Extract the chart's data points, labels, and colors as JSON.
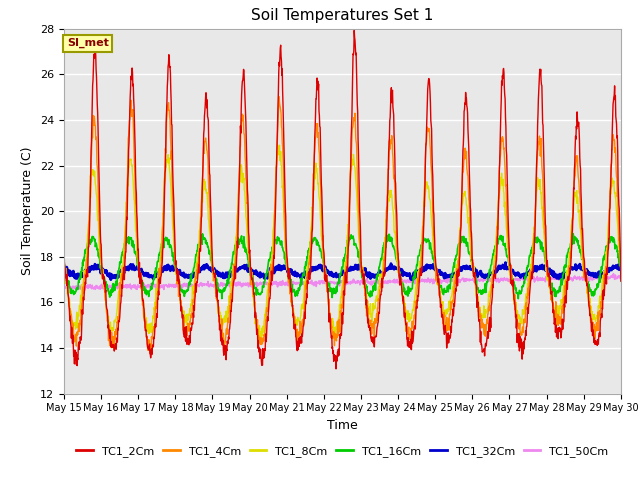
{
  "title": "Soil Temperatures Set 1",
  "xlabel": "Time",
  "ylabel": "Soil Temperature (C)",
  "ylim": [
    12,
    28
  ],
  "yticks": [
    12,
    14,
    16,
    18,
    20,
    22,
    24,
    26,
    28
  ],
  "series_colors": {
    "TC1_2Cm": "#dd0000",
    "TC1_4Cm": "#ff8800",
    "TC1_8Cm": "#dddd00",
    "TC1_16Cm": "#00cc00",
    "TC1_32Cm": "#0000cc",
    "TC1_50Cm": "#ee88ee"
  },
  "series_labels": [
    "TC1_2Cm",
    "TC1_4Cm",
    "TC1_8Cm",
    "TC1_16Cm",
    "TC1_32Cm",
    "TC1_50Cm"
  ],
  "x_tick_labels": [
    "May 15",
    "May 16",
    "May 17",
    "May 18",
    "May 19",
    "May 20",
    "May 21",
    "May 22",
    "May 23",
    "May 24",
    "May 25",
    "May 26",
    "May 27",
    "May 28",
    "May 29",
    "May 30"
  ],
  "annotation_text": "SI_met",
  "background_color": "#e8e8e8",
  "line_width": 1.0
}
